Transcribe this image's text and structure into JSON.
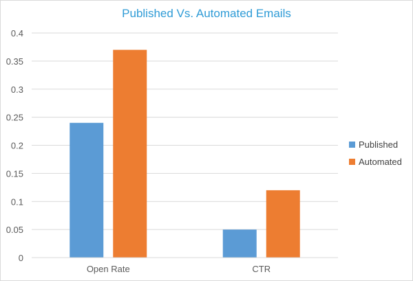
{
  "chart_data": {
    "type": "bar",
    "title": "Published Vs. Automated Emails",
    "categories": [
      "Open Rate",
      "CTR"
    ],
    "series": [
      {
        "name": "Published",
        "values": [
          0.24,
          0.05
        ],
        "color": "#5b9bd5"
      },
      {
        "name": "Automated",
        "values": [
          0.37,
          0.12
        ],
        "color": "#ed7d31"
      }
    ],
    "ylim": [
      0,
      0.4
    ],
    "yticks": [
      0,
      0.05,
      0.1,
      0.15,
      0.2,
      0.25,
      0.3,
      0.35,
      0.4
    ],
    "ytick_labels": [
      "0",
      "0.05",
      "0.1",
      "0.15",
      "0.2",
      "0.25",
      "0.3",
      "0.35",
      "0.4"
    ],
    "grid": true,
    "legend_position": "right",
    "gridline_color": "#d9d9d9"
  }
}
